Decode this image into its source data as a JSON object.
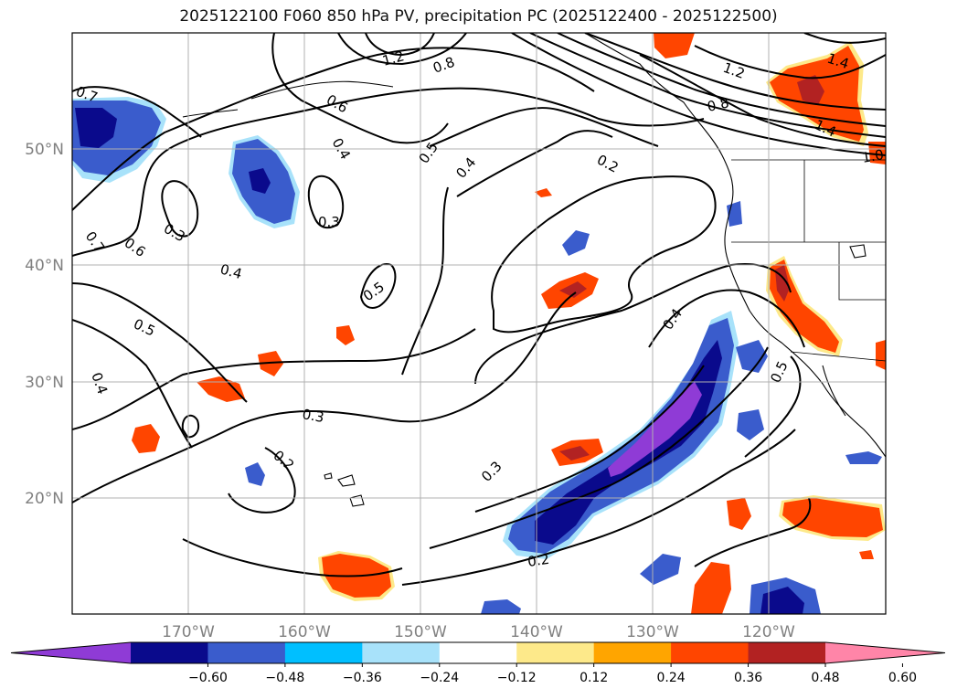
{
  "title": "2025122100 F060 850 hPa PV, precipitation PC (2025122400 - 2025122500)",
  "map": {
    "latitude_labels": [
      "50°N",
      "40°N",
      "30°N",
      "20°N"
    ],
    "longitude_labels": [
      "170°W",
      "160°W",
      "150°W",
      "140°W",
      "130°W",
      "120°W"
    ],
    "label_color": "#808080"
  },
  "contours": {
    "labels": [
      "0.7",
      "0.8",
      "1.2",
      "0.6",
      "0.4",
      "0.3",
      "0.5",
      "0.4",
      "0.2",
      "0.8",
      "1.2",
      "1.4",
      "1.4",
      "1.0",
      "0.7",
      "0.6",
      "0.3",
      "0.4",
      "0.5",
      "0.5",
      "0.3",
      "0.2",
      "0.3",
      "0.4",
      "0.5",
      "0.2",
      "0.4"
    ]
  },
  "colorbar": {
    "colors": [
      "#8f3bd6",
      "#0a0a8c",
      "#3a5ccc",
      "#00bfff",
      "#a8e2fa",
      "#ffffff",
      "#fde98a",
      "#ffa500",
      "#ff4500",
      "#b22222",
      "#ff85a8"
    ],
    "tick_labels": [
      "−0.60",
      "−0.48",
      "−0.36",
      "−0.24",
      "−0.12",
      "0.12",
      "0.24",
      "0.36",
      "0.48",
      "0.60"
    ]
  }
}
